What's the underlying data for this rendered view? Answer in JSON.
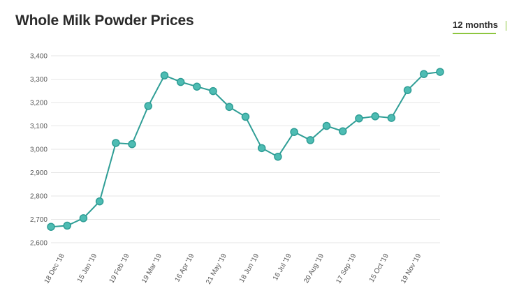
{
  "header": {
    "title": "Whole Milk Powder Prices",
    "range_label": "12 months"
  },
  "colors": {
    "line": "#2f9e96",
    "marker": "#4ebcb3",
    "marker_stroke": "#2f9e96",
    "accent": "#8dc63f"
  },
  "chart_data": {
    "type": "line",
    "title": "Whole Milk Powder Prices",
    "xlabel": "",
    "ylabel": "",
    "ylim": [
      2600,
      3400
    ],
    "yticks": [
      2600,
      2700,
      2800,
      2900,
      3000,
      3100,
      3200,
      3300,
      3400
    ],
    "ytick_labels": [
      "2,600",
      "2,700",
      "2,800",
      "2,900",
      "3,000",
      "3,100",
      "3,200",
      "3,300",
      "3,400"
    ],
    "grid": true,
    "xtick_labels": [
      {
        "index": 1,
        "label": "18 Dec '18"
      },
      {
        "index": 3,
        "label": "15 Jan '19"
      },
      {
        "index": 5,
        "label": "19 Feb '19"
      },
      {
        "index": 7,
        "label": "19 Mar '19"
      },
      {
        "index": 9,
        "label": "16 Apr '19"
      },
      {
        "index": 11,
        "label": "21 May '19"
      },
      {
        "index": 13,
        "label": "18 Jun '19"
      },
      {
        "index": 15,
        "label": "16 Jul '19"
      },
      {
        "index": 17,
        "label": "20 Aug '19"
      },
      {
        "index": 19,
        "label": "17 Sep '19"
      },
      {
        "index": 21,
        "label": "15 Oct '19"
      },
      {
        "index": 23,
        "label": "19 Nov '19"
      }
    ],
    "series": [
      {
        "values": [
          2668,
          2673,
          2705,
          2777,
          3027,
          3022,
          3185,
          3316,
          3288,
          3268,
          3249,
          3181,
          3139,
          3005,
          2968,
          3074,
          3039,
          3100,
          3077,
          3132,
          3141,
          3134,
          3253,
          3322,
          3331
        ]
      }
    ]
  }
}
